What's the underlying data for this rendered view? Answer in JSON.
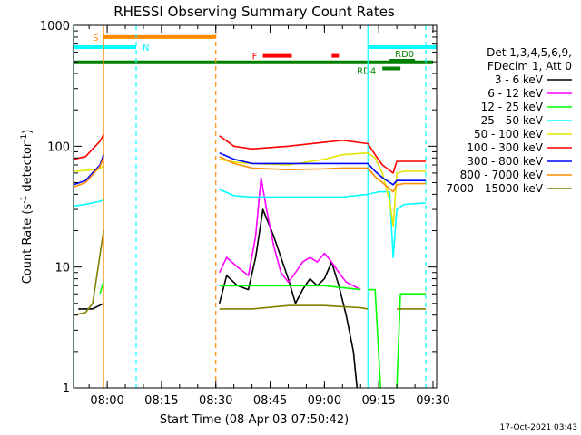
{
  "chart_data": {
    "type": "line",
    "title": "RHESSI Observing Summary Count Rates",
    "xlabel": "Start Time (08-Apr-03 07:50:42)",
    "ylabel_pre": "Count Rate (s",
    "ylabel_sup1": "-1",
    "ylabel_mid": " detector",
    "ylabel_sup2": "-1",
    "ylabel_post": ")",
    "y_scale": "log",
    "ylim": [
      1,
      1000
    ],
    "xlim": [
      "07:50:42",
      "09:31:00"
    ],
    "x_ticks": [
      "08:00",
      "08:15",
      "08:30",
      "08:45",
      "09:00",
      "09:15",
      "09:30"
    ],
    "y_ticks": [
      "1",
      "10",
      "100",
      "1000"
    ],
    "timestamp": "17-Oct-2021 03:43",
    "legend": {
      "position": "right",
      "header": [
        "Det 1,3,4,5,6,9,",
        "FDecim 1, Att 0"
      ],
      "entries": [
        {
          "label": "3 - 6 keV",
          "color": "#000000"
        },
        {
          "label": "6 - 12 keV",
          "color": "#ff00ff"
        },
        {
          "label": "12 - 25 keV",
          "color": "#00ff00"
        },
        {
          "label": "25 - 50 keV",
          "color": "#00ffff"
        },
        {
          "label": "50 - 100 keV",
          "color": "#e6e600"
        },
        {
          "label": "100 - 300 keV",
          "color": "#ff0000"
        },
        {
          "label": "300 - 800 keV",
          "color": "#0000ff"
        },
        {
          "label": "800 - 7000 keV",
          "color": "#ff8c00"
        },
        {
          "label": "7000 - 15000 keV",
          "color": "#808000"
        }
      ]
    },
    "flag_bars": [
      {
        "label": "S",
        "color": "#ff8c00",
        "x_start": "07:59:00",
        "x_end": "08:30:00",
        "y_level": 800
      },
      {
        "label": "N",
        "color": "#00ffff",
        "x_start": "07:50:42",
        "x_end": "08:08:00",
        "y_level": 660
      },
      {
        "label": "",
        "color": "#008000",
        "x_start": "07:50:42",
        "x_end": "09:30:00",
        "y_level": 495
      },
      {
        "label": "F",
        "color": "#ff0000",
        "x_start": "08:43:00",
        "x_end": "08:51:00",
        "y_level": 560
      },
      {
        "label": "",
        "color": "#ff0000",
        "x_start": "09:02:00",
        "x_end": "09:04:00",
        "y_level": 560
      },
      {
        "label": "",
        "color": "#00ffff",
        "x_start": "09:12:00",
        "x_end": "09:31:00",
        "y_level": 660
      },
      {
        "label": "RD0",
        "color": "#008000",
        "x_start": "09:18:00",
        "x_end": "09:25:00",
        "y_level": 510
      },
      {
        "label": "RD4",
        "color": "#008000",
        "x_start": "09:16:00",
        "x_end": "09:21:00",
        "y_level": 440
      }
    ],
    "vertical_markers": [
      {
        "x": "07:50:42",
        "color": "#00ffff",
        "style": "solid"
      },
      {
        "x": "07:59:00",
        "color": "#ff8c00",
        "style": "solid"
      },
      {
        "x": "08:08:00",
        "color": "#00ffff",
        "style": "dashed"
      },
      {
        "x": "08:30:00",
        "color": "#ff8c00",
        "style": "dashed"
      },
      {
        "x": "09:12:00",
        "color": "#00ffff",
        "style": "solid"
      },
      {
        "x": "09:28:00",
        "color": "#00ffff",
        "style": "dashed"
      }
    ],
    "series": [
      {
        "name": "3 - 6 keV",
        "color": "#000000",
        "segments": [
          {
            "x": [
              "07:52:00",
              "07:56:00",
              "07:59:00"
            ],
            "y": [
              4.5,
              4.5,
              5
            ]
          },
          {
            "x": [
              "08:31:00",
              "08:33:00",
              "08:36:00",
              "08:39:00",
              "08:41:00",
              "08:43:00",
              "08:46:00",
              "08:48:00",
              "08:50:00",
              "08:52:00",
              "08:54:00",
              "08:56:00",
              "08:58:00",
              "09:00:00",
              "09:02:00",
              "09:04:00",
              "09:06:00",
              "09:08:00",
              "09:09:00"
            ],
            "y": [
              5,
              8.5,
              7,
              6.5,
              12,
              30,
              18,
              12,
              8,
              5,
              6.5,
              8,
              7,
              8,
              11,
              7,
              4,
              2,
              1
            ]
          }
        ]
      },
      {
        "name": "6 - 12 keV",
        "color": "#ff00ff",
        "segments": [
          {
            "x": [
              "08:31:00",
              "08:33:00",
              "08:36:00",
              "08:39:00",
              "08:41:00",
              "08:42:30",
              "08:44:00",
              "08:46:00",
              "08:48:00",
              "08:50:00",
              "08:52:00",
              "08:54:00",
              "08:56:00",
              "08:58:00",
              "09:00:00",
              "09:02:00",
              "09:04:00",
              "09:06:00",
              "09:08:00",
              "09:10:00"
            ],
            "y": [
              9,
              12,
              10,
              8.5,
              18,
              55,
              30,
              15,
              9,
              7.5,
              9,
              11,
              12,
              11,
              13,
              11,
              9,
              7.5,
              7,
              6.5
            ]
          }
        ]
      },
      {
        "name": "12 - 25 keV",
        "color": "#00ff00",
        "segments": [
          {
            "x": [
              "07:58:00",
              "07:59:00"
            ],
            "y": [
              6,
              7.5
            ]
          },
          {
            "x": [
              "08:31:00",
              "08:40:00",
              "08:50:00",
              "09:00:00",
              "09:10:00"
            ],
            "y": [
              7,
              7,
              7,
              7,
              6.5
            ]
          },
          {
            "x": [
              "09:12:00",
              "09:14:00",
              "09:15:30"
            ],
            "y": [
              6.5,
              6.5,
              1
            ]
          },
          {
            "x": [
              "09:20:00",
              "09:21:00",
              "09:28:00"
            ],
            "y": [
              1,
              6,
              6
            ]
          }
        ]
      },
      {
        "name": "25 - 50 keV",
        "color": "#00ffff",
        "segments": [
          {
            "x": [
              "07:50:42",
              "07:54:00",
              "07:58:00",
              "07:59:00"
            ],
            "y": [
              32,
              33,
              35,
              36
            ]
          },
          {
            "x": [
              "08:31:00",
              "08:35:00",
              "08:40:00",
              "08:50:00",
              "09:00:00",
              "09:05:00",
              "09:12:00",
              "09:15:00",
              "09:18:00",
              "09:19:00",
              "09:20:00",
              "09:22:00",
              "09:28:00"
            ],
            "y": [
              44,
              39,
              38,
              38,
              38,
              38,
              40,
              42,
              42,
              12,
              30,
              33,
              34
            ]
          }
        ]
      },
      {
        "name": "50 - 100 keV",
        "color": "#e6e600",
        "segments": [
          {
            "x": [
              "07:50:42",
              "07:54:00",
              "07:58:00",
              "07:59:00"
            ],
            "y": [
              62,
              63,
              65,
              70
            ]
          },
          {
            "x": [
              "08:31:00",
              "08:35:00",
              "08:40:00",
              "08:50:00",
              "09:00:00",
              "09:05:00",
              "09:12:00",
              "09:14:00",
              "09:16:00",
              "09:18:00",
              "09:19:00",
              "09:20:00",
              "09:22:00",
              "09:28:00"
            ],
            "y": [
              78,
              74,
              72,
              70,
              78,
              85,
              88,
              80,
              60,
              35,
              22,
              60,
              62,
              62
            ]
          }
        ]
      },
      {
        "name": "100 - 300 keV",
        "color": "#ff0000",
        "segments": [
          {
            "x": [
              "07:50:42",
              "07:54:00",
              "07:58:00",
              "07:59:00"
            ],
            "y": [
              78,
              82,
              110,
              125
            ]
          },
          {
            "x": [
              "08:31:00",
              "08:35:00",
              "08:40:00",
              "08:50:00",
              "09:00:00",
              "09:05:00",
              "09:12:00",
              "09:14:00",
              "09:16:00",
              "09:19:00",
              "09:20:00",
              "09:22:00",
              "09:28:00"
            ],
            "y": [
              122,
              100,
              95,
              100,
              108,
              112,
              105,
              85,
              70,
              60,
              75,
              75,
              75
            ]
          }
        ]
      },
      {
        "name": "300 - 800 keV",
        "color": "#0000ff",
        "segments": [
          {
            "x": [
              "07:50:42",
              "07:54:00",
              "07:58:00",
              "07:59:00"
            ],
            "y": [
              48,
              52,
              70,
              85
            ]
          },
          {
            "x": [
              "08:31:00",
              "08:35:00",
              "08:40:00",
              "08:50:00",
              "09:00:00",
              "09:05:00",
              "09:12:00",
              "09:14:00",
              "09:16:00",
              "09:19:00",
              "09:20:00",
              "09:22:00",
              "09:28:00"
            ],
            "y": [
              88,
              78,
              72,
              72,
              72,
              72,
              72,
              62,
              55,
              48,
              52,
              52,
              52
            ]
          }
        ]
      },
      {
        "name": "800 - 7000 keV",
        "color": "#ff8c00",
        "segments": [
          {
            "x": [
              "07:50:42",
              "07:54:00",
              "07:58:00",
              "07:59:00"
            ],
            "y": [
              46,
              50,
              68,
              80
            ]
          },
          {
            "x": [
              "08:31:00",
              "08:35:00",
              "08:40:00",
              "08:50:00",
              "09:00:00",
              "09:05:00",
              "09:12:00",
              "09:14:00",
              "09:16:00",
              "09:19:00",
              "09:20:00",
              "09:22:00",
              "09:28:00"
            ],
            "y": [
              82,
              72,
              66,
              64,
              65,
              66,
              66,
              56,
              50,
              42,
              48,
              49,
              49
            ]
          }
        ]
      },
      {
        "name": "7000 - 15000 keV",
        "color": "#808000",
        "segments": [
          {
            "x": [
              "07:50:42",
              "07:54:00",
              "07:56:00",
              "07:57:30",
              "07:59:00"
            ],
            "y": [
              4,
              4.2,
              5,
              10,
              20
            ]
          },
          {
            "x": [
              "08:31:00",
              "08:40:00",
              "08:50:00",
              "09:00:00",
              "09:10:00",
              "09:12:00"
            ],
            "y": [
              4.5,
              4.5,
              4.8,
              4.8,
              4.6,
              4.5
            ]
          },
          {
            "x": [
              "09:20:00",
              "09:28:00"
            ],
            "y": [
              4.5,
              4.5
            ]
          }
        ]
      }
    ]
  }
}
